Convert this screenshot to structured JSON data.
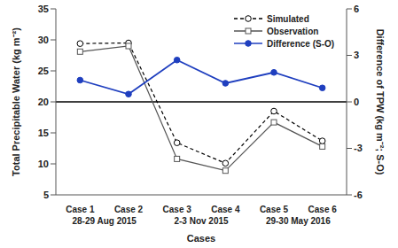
{
  "chart_data": {
    "type": "line",
    "categories": [
      "Case 1",
      "Case 2",
      "Case 3",
      "Case 4",
      "Case 5",
      "Case 6"
    ],
    "groups": [
      {
        "label": "28-29 Aug 2015",
        "categories": [
          "Case 1",
          "Case 2"
        ]
      },
      {
        "label": "2-3 Nov 2015",
        "categories": [
          "Case 3",
          "Case 4"
        ]
      },
      {
        "label": "29-30 May 2016",
        "categories": [
          "Case 5",
          "Case 6"
        ]
      }
    ],
    "x_label": "Cases",
    "y_label": "Total Precipitable Water (kg m⁻²)",
    "y2_label": "Difference of TPW (kg m⁻²; S-O)",
    "ylim": [
      5,
      35
    ],
    "yticks": [
      5,
      10,
      15,
      20,
      25,
      30,
      35
    ],
    "y2lim": [
      -6,
      6
    ],
    "y2ticks": [
      -6,
      -3,
      0,
      3,
      6
    ],
    "legend": "upper right",
    "series": [
      {
        "name": "Simulated",
        "color": "#000000",
        "marker": "open_circle",
        "line_style": "dashed",
        "values": [
          29.4,
          29.5,
          13.4,
          10.1,
          18.5,
          13.7
        ]
      },
      {
        "name": "Observation",
        "color": "#555555",
        "marker": "open_square",
        "line_style": "solid",
        "values": [
          28.1,
          29.0,
          10.8,
          8.9,
          16.7,
          12.8
        ]
      },
      {
        "name": "Difference (S-O)",
        "color": "#1f3fbf",
        "marker": "circle",
        "line_style": "solid",
        "axis": "y2",
        "values": [
          1.4,
          0.5,
          2.7,
          1.2,
          1.9,
          0.9
        ]
      }
    ]
  }
}
